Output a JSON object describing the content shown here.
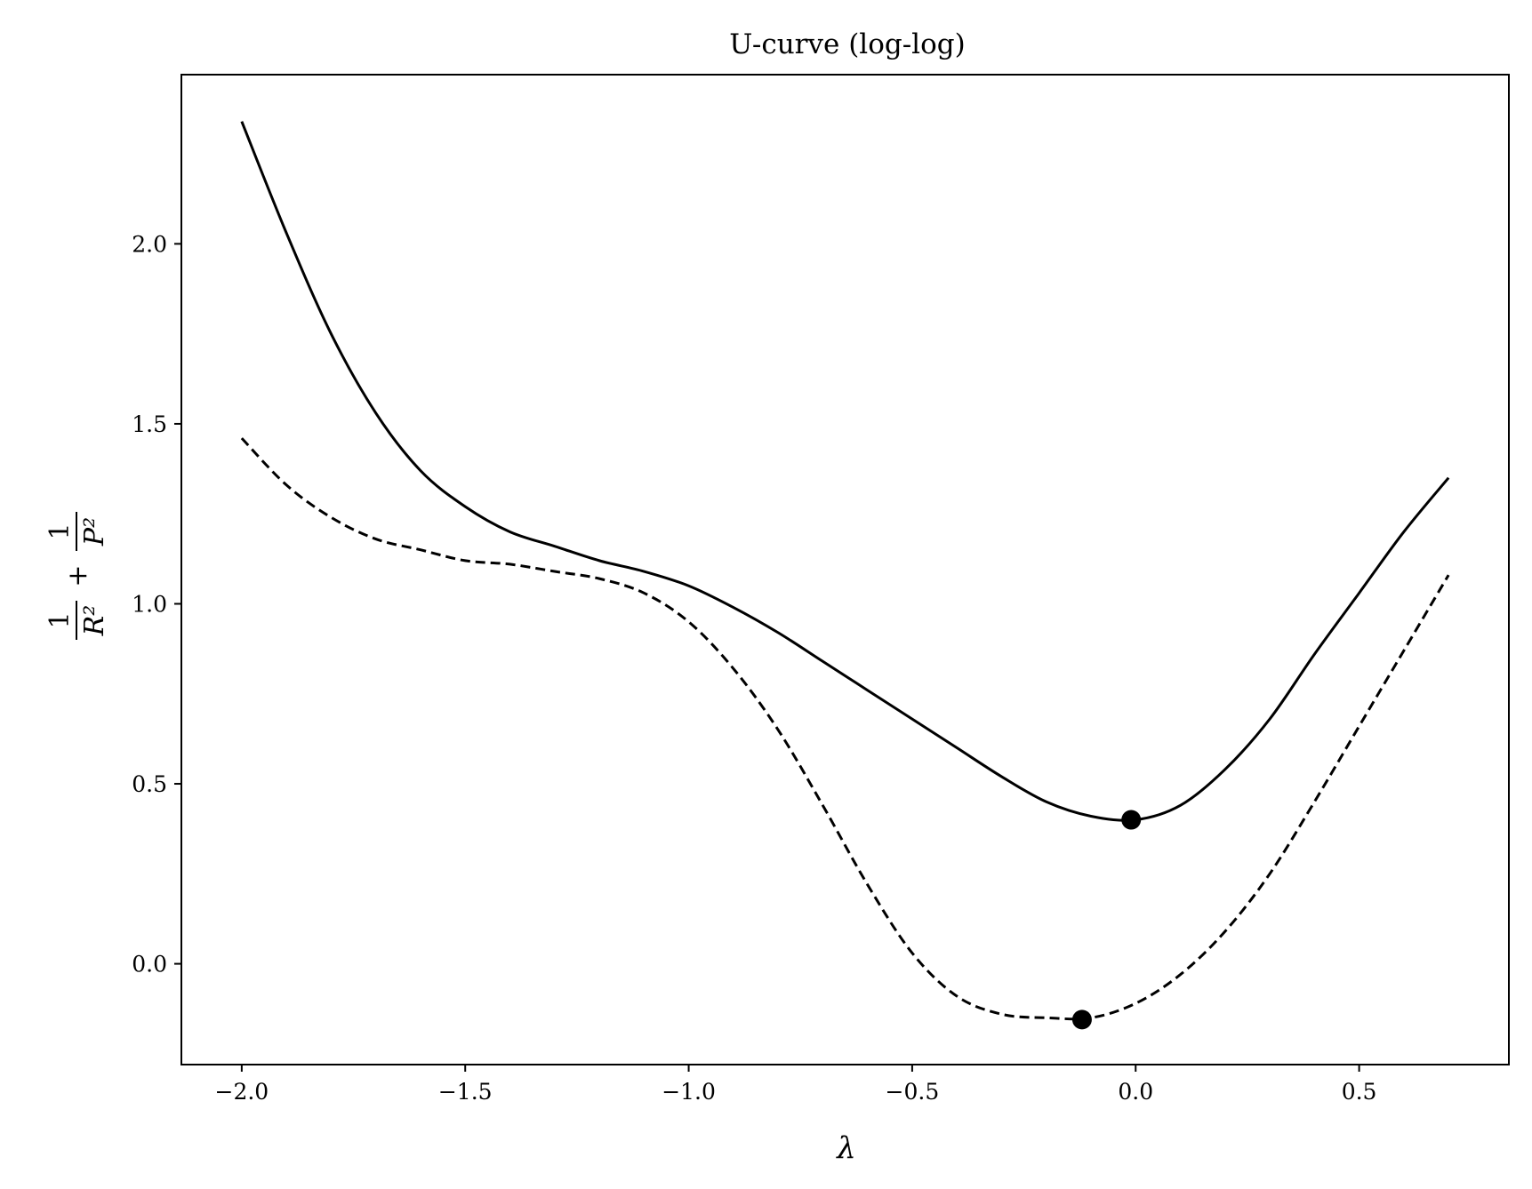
{
  "chart_data": {
    "type": "line",
    "title": "U-curve (log-log)",
    "xlabel": "λ",
    "ylabel": {
      "term1_num": "1",
      "term1_den": "R²",
      "plus": "+",
      "term2_num": "1",
      "term2_den": "P²"
    },
    "xlim": [
      -2.135,
      0.835
    ],
    "ylim": [
      -0.28,
      2.47
    ],
    "grid": false,
    "legend": "none",
    "xticks": [
      -2.0,
      -1.5,
      -1.0,
      -0.5,
      0.0,
      0.5
    ],
    "xtick_labels": [
      "−2.0",
      "−1.5",
      "−1.0",
      "−0.5",
      "0.0",
      "0.5"
    ],
    "yticks": [
      0.0,
      0.5,
      1.0,
      1.5,
      2.0
    ],
    "ytick_labels": [
      "0.0",
      "0.5",
      "1.0",
      "1.5",
      "2.0"
    ],
    "series": [
      {
        "style": "solid",
        "x": [
          -2.0,
          -1.9,
          -1.8,
          -1.7,
          -1.6,
          -1.5,
          -1.4,
          -1.3,
          -1.2,
          -1.1,
          -1.0,
          -0.9,
          -0.8,
          -0.7,
          -0.6,
          -0.5,
          -0.4,
          -0.3,
          -0.2,
          -0.1,
          0.0,
          0.1,
          0.2,
          0.3,
          0.4,
          0.5,
          0.6,
          0.7
        ],
        "y": [
          2.34,
          2.03,
          1.75,
          1.53,
          1.37,
          1.27,
          1.2,
          1.16,
          1.12,
          1.09,
          1.05,
          0.99,
          0.92,
          0.84,
          0.76,
          0.68,
          0.6,
          0.52,
          0.45,
          0.41,
          0.4,
          0.44,
          0.54,
          0.68,
          0.86,
          1.03,
          1.2,
          1.35
        ]
      },
      {
        "style": "dashed",
        "x": [
          -2.0,
          -1.9,
          -1.8,
          -1.7,
          -1.6,
          -1.5,
          -1.4,
          -1.3,
          -1.2,
          -1.1,
          -1.0,
          -0.9,
          -0.8,
          -0.7,
          -0.6,
          -0.5,
          -0.4,
          -0.3,
          -0.2,
          -0.1,
          0.0,
          0.1,
          0.2,
          0.3,
          0.4,
          0.5,
          0.6,
          0.7
        ],
        "y": [
          1.46,
          1.33,
          1.24,
          1.18,
          1.15,
          1.12,
          1.11,
          1.09,
          1.07,
          1.03,
          0.95,
          0.82,
          0.65,
          0.44,
          0.22,
          0.03,
          -0.09,
          -0.14,
          -0.15,
          -0.15,
          -0.11,
          -0.03,
          0.09,
          0.25,
          0.45,
          0.66,
          0.87,
          1.08
        ]
      }
    ],
    "markers": [
      {
        "x": -0.01,
        "y": 0.4
      },
      {
        "x": -0.12,
        "y": -0.155
      }
    ]
  }
}
